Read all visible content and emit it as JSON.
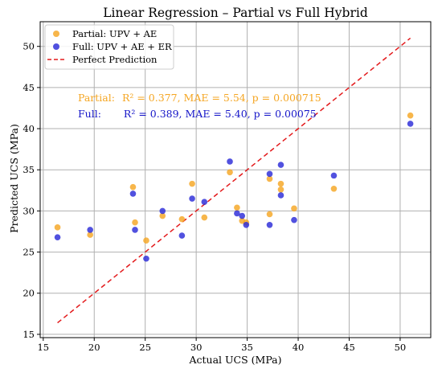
{
  "chart_data": {
    "type": "scatter",
    "title": "Linear Regression – Partial vs Full Hybrid",
    "xlabel": "Actual UCS (MPa)",
    "ylabel": "Predicted UCS (MPa)",
    "xlim": [
      14.7,
      53.0
    ],
    "ylim": [
      14.6,
      53.0
    ],
    "x_ticks": [
      15,
      20,
      25,
      30,
      35,
      40,
      45,
      50
    ],
    "y_ticks": [
      15,
      20,
      25,
      30,
      35,
      40,
      45,
      50
    ],
    "grid": true,
    "legend_position": "top-left",
    "series": [
      {
        "name": "Partial: UPV + AE",
        "color": "#f5a623",
        "points": [
          [
            16.4,
            28.0
          ],
          [
            19.6,
            27.1
          ],
          [
            23.8,
            32.9
          ],
          [
            24.0,
            28.6
          ],
          [
            25.1,
            26.4
          ],
          [
            26.7,
            29.4
          ],
          [
            28.6,
            29.0
          ],
          [
            29.6,
            33.3
          ],
          [
            30.8,
            29.2
          ],
          [
            33.3,
            34.7
          ],
          [
            34.0,
            30.4
          ],
          [
            34.5,
            28.8
          ],
          [
            34.9,
            28.6
          ],
          [
            37.2,
            29.6
          ],
          [
            37.2,
            33.9
          ],
          [
            38.3,
            33.3
          ],
          [
            38.3,
            32.6
          ],
          [
            39.6,
            30.3
          ],
          [
            43.5,
            32.7
          ],
          [
            51.0,
            41.6
          ]
        ]
      },
      {
        "name": "Full: UPV + AE + ER",
        "color": "#2b2bd8",
        "points": [
          [
            16.4,
            26.8
          ],
          [
            19.6,
            27.7
          ],
          [
            23.8,
            32.1
          ],
          [
            24.0,
            27.7
          ],
          [
            25.1,
            24.2
          ],
          [
            26.7,
            30.0
          ],
          [
            28.6,
            27.0
          ],
          [
            29.6,
            31.5
          ],
          [
            30.8,
            31.1
          ],
          [
            33.3,
            36.0
          ],
          [
            34.0,
            29.7
          ],
          [
            34.5,
            29.4
          ],
          [
            34.9,
            28.3
          ],
          [
            37.2,
            34.5
          ],
          [
            37.2,
            28.3
          ],
          [
            38.3,
            35.6
          ],
          [
            38.3,
            31.9
          ],
          [
            39.6,
            28.9
          ],
          [
            43.5,
            34.3
          ],
          [
            51.0,
            40.6
          ]
        ]
      }
    ],
    "reference_line": {
      "name": "Perfect Prediction",
      "color": "#e31a1c",
      "x": [
        16.4,
        51.0
      ],
      "y": [
        16.4,
        51.0
      ]
    },
    "annotations": [
      {
        "label": "Partial:",
        "text": "R² = 0.377, MAE = 5.54, p = 0.000715",
        "color": "#f5a623"
      },
      {
        "label": "Full:",
        "text": "R² = 0.389, MAE = 5.40, p = 0.00075",
        "color": "#1515c8"
      }
    ]
  }
}
